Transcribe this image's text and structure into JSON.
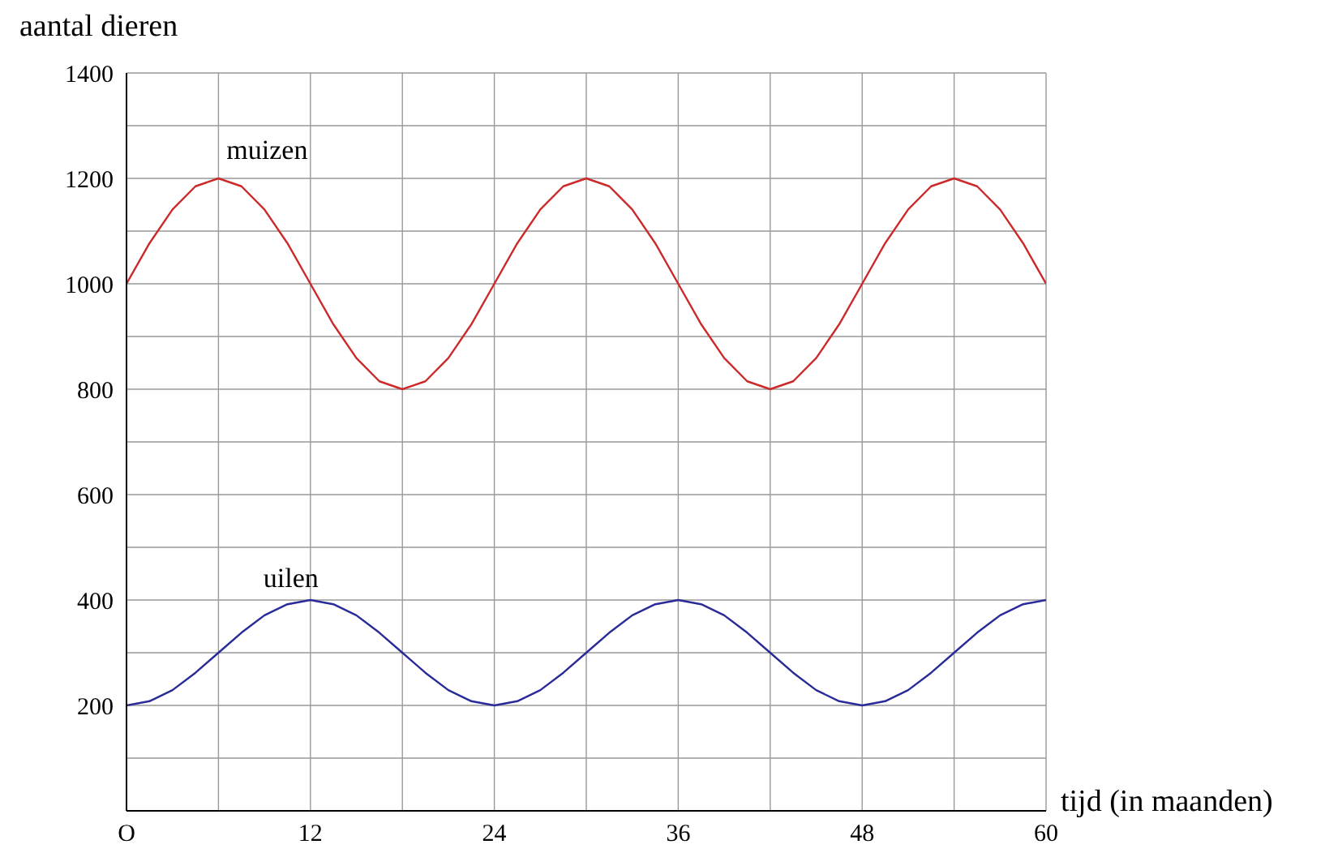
{
  "chart_data": {
    "type": "line",
    "xlabel": "tijd (in maanden)",
    "ylabel": "aantal dieren",
    "x": [
      0,
      1.5,
      3,
      4.5,
      6,
      7.5,
      9,
      10.5,
      12,
      13.5,
      15,
      16.5,
      18,
      19.5,
      21,
      22.5,
      24,
      25.5,
      27,
      28.5,
      30,
      31.5,
      33,
      34.5,
      36,
      37.5,
      39,
      40.5,
      42,
      43.5,
      45,
      46.5,
      48,
      49.5,
      51,
      52.5,
      54,
      55.5,
      57,
      58.5,
      60
    ],
    "series": [
      {
        "name": "muizen",
        "color": "#cc2a2a",
        "values": [
          1000,
          1077,
          1141,
          1185,
          1200,
          1185,
          1141,
          1077,
          1000,
          923,
          859,
          815,
          800,
          815,
          859,
          923,
          1000,
          1077,
          1141,
          1185,
          1200,
          1185,
          1141,
          1077,
          1000,
          923,
          859,
          815,
          800,
          815,
          859,
          923,
          1000,
          1077,
          1141,
          1185,
          1200,
          1185,
          1141,
          1077,
          1000
        ]
      },
      {
        "name": "uilen",
        "color": "#2a2a99",
        "values": [
          200,
          208,
          229,
          262,
          300,
          338,
          371,
          392,
          400,
          392,
          371,
          338,
          300,
          262,
          229,
          208,
          200,
          208,
          229,
          262,
          300,
          338,
          371,
          392,
          400,
          392,
          371,
          338,
          300,
          262,
          229,
          208,
          200,
          208,
          229,
          262,
          300,
          338,
          371,
          392,
          400
        ]
      }
    ],
    "xlim": [
      0,
      60
    ],
    "xticks": [
      {
        "value": 0,
        "label": "O"
      },
      {
        "value": 6,
        "label": null
      },
      12,
      {
        "value": 18,
        "label": null
      },
      24,
      {
        "value": 30,
        "label": null
      },
      36,
      {
        "value": 42,
        "label": null
      },
      48,
      {
        "value": 54,
        "label": null
      },
      60
    ],
    "ylim": [
      0,
      1400
    ],
    "yticks": [
      {
        "value": 0,
        "label": null
      },
      {
        "value": 100,
        "label": null
      },
      200,
      {
        "value": 300,
        "label": null
      },
      400,
      {
        "value": 500,
        "label": null
      },
      600,
      {
        "value": 700,
        "label": null
      },
      800,
      {
        "value": 900,
        "label": null
      },
      1000,
      {
        "value": 1100,
        "label": null
      },
      1200,
      {
        "value": 1300,
        "label": null
      },
      1400
    ],
    "grid": true,
    "marker": "none",
    "line_style": "solid"
  }
}
